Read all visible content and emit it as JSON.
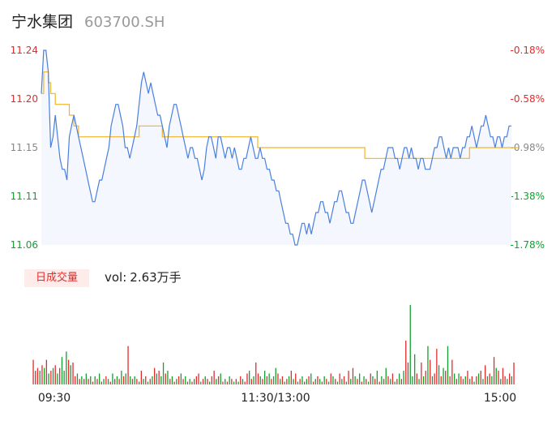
{
  "header": {
    "name": "宁水集团",
    "code": "603700.SH"
  },
  "colors": {
    "up": "#e02c2c",
    "down": "#13a031",
    "price_line": "#4a7fe0",
    "avg_line": "#f2b428",
    "area": "#f4f7fd",
    "neutral": "#888888"
  },
  "volume": {
    "badge": "日成交量",
    "label": "vol:",
    "value": "2.63万手"
  },
  "chart_data": {
    "type": "line",
    "x_ticks": [
      "09:30",
      "11:30/13:00",
      "15:00"
    ],
    "y_left_ticks": [
      "11.24",
      "11.20",
      "11.15",
      "11.11",
      "11.06"
    ],
    "y_right_ticks": [
      "-0.18%",
      "-0.58%",
      "-0.98%",
      "-1.38%",
      "-1.78%"
    ],
    "ylim": [
      11.06,
      11.24
    ],
    "price": [
      11.2,
      11.24,
      11.24,
      11.22,
      11.15,
      11.16,
      11.18,
      11.16,
      11.14,
      11.13,
      11.13,
      11.12,
      11.16,
      11.17,
      11.18,
      11.17,
      11.16,
      11.15,
      11.14,
      11.13,
      11.12,
      11.11,
      11.1,
      11.1,
      11.11,
      11.12,
      11.12,
      11.13,
      11.14,
      11.15,
      11.17,
      11.18,
      11.19,
      11.19,
      11.18,
      11.17,
      11.15,
      11.15,
      11.14,
      11.15,
      11.16,
      11.17,
      11.19,
      11.21,
      11.22,
      11.21,
      11.2,
      11.21,
      11.2,
      11.19,
      11.18,
      11.18,
      11.17,
      11.16,
      11.15,
      11.17,
      11.18,
      11.19,
      11.19,
      11.18,
      11.17,
      11.16,
      11.15,
      11.14,
      11.15,
      11.15,
      11.14,
      11.14,
      11.13,
      11.12,
      11.13,
      11.15,
      11.16,
      11.16,
      11.15,
      11.14,
      11.16,
      11.16,
      11.15,
      11.14,
      11.15,
      11.15,
      11.14,
      11.15,
      11.14,
      11.13,
      11.13,
      11.14,
      11.14,
      11.15,
      11.16,
      11.15,
      11.14,
      11.14,
      11.15,
      11.14,
      11.14,
      11.13,
      11.13,
      11.12,
      11.12,
      11.11,
      11.11,
      11.1,
      11.09,
      11.08,
      11.08,
      11.07,
      11.07,
      11.06,
      11.06,
      11.07,
      11.08,
      11.08,
      11.07,
      11.08,
      11.07,
      11.08,
      11.09,
      11.09,
      11.1,
      11.1,
      11.09,
      11.09,
      11.08,
      11.09,
      11.1,
      11.1,
      11.11,
      11.11,
      11.1,
      11.09,
      11.09,
      11.08,
      11.08,
      11.09,
      11.1,
      11.11,
      11.12,
      11.12,
      11.11,
      11.1,
      11.09,
      11.1,
      11.11,
      11.12,
      11.13,
      11.13,
      11.14,
      11.15,
      11.15,
      11.15,
      11.14,
      11.14,
      11.13,
      11.14,
      11.15,
      11.15,
      11.14,
      11.15,
      11.14,
      11.14,
      11.13,
      11.14,
      11.14,
      11.13,
      11.13,
      11.13,
      11.14,
      11.15,
      11.15,
      11.16,
      11.16,
      11.15,
      11.14,
      11.15,
      11.14,
      11.15,
      11.15,
      11.15,
      11.14,
      11.15,
      11.15,
      11.16,
      11.16,
      11.17,
      11.16,
      11.15,
      11.16,
      11.17,
      11.17,
      11.18,
      11.17,
      11.16,
      11.16,
      11.15,
      11.16,
      11.16,
      11.15,
      11.16,
      11.16,
      11.17,
      11.17
    ],
    "average": [
      11.2,
      11.22,
      11.22,
      11.21,
      11.2,
      11.2,
      11.19,
      11.19,
      11.19,
      11.19,
      11.19,
      11.19,
      11.18,
      11.18,
      11.17,
      11.17,
      11.16,
      11.16,
      11.16,
      11.16,
      11.16,
      11.16,
      11.16,
      11.16,
      11.16,
      11.16,
      11.16,
      11.16,
      11.16,
      11.16,
      11.16,
      11.16,
      11.16,
      11.16,
      11.16,
      11.16,
      11.16,
      11.16,
      11.16,
      11.16,
      11.16,
      11.16,
      11.17,
      11.17,
      11.17,
      11.17,
      11.17,
      11.17,
      11.17,
      11.17,
      11.17,
      11.17,
      11.16,
      11.16,
      11.16,
      11.16,
      11.16,
      11.16,
      11.16,
      11.16,
      11.16,
      11.16,
      11.16,
      11.16,
      11.16,
      11.16,
      11.16,
      11.16,
      11.16,
      11.16,
      11.16,
      11.16,
      11.16,
      11.16,
      11.16,
      11.16,
      11.16,
      11.16,
      11.16,
      11.16,
      11.16,
      11.16,
      11.16,
      11.16,
      11.16,
      11.16,
      11.16,
      11.16,
      11.16,
      11.16,
      11.16,
      11.16,
      11.16,
      11.15,
      11.15,
      11.15,
      11.15,
      11.15,
      11.15,
      11.15,
      11.15,
      11.15,
      11.15,
      11.15,
      11.15,
      11.15,
      11.15,
      11.15,
      11.15,
      11.15,
      11.15,
      11.15,
      11.15,
      11.15,
      11.15,
      11.15,
      11.15,
      11.15,
      11.15,
      11.15,
      11.15,
      11.15,
      11.15,
      11.15,
      11.15,
      11.15,
      11.15,
      11.15,
      11.15,
      11.15,
      11.15,
      11.15,
      11.15,
      11.15,
      11.15,
      11.15,
      11.15,
      11.15,
      11.15,
      11.14,
      11.14,
      11.14,
      11.14,
      11.14,
      11.14,
      11.14,
      11.14,
      11.14,
      11.14,
      11.14,
      11.14,
      11.14,
      11.14,
      11.14,
      11.14,
      11.14,
      11.14,
      11.14,
      11.14,
      11.14,
      11.14,
      11.14,
      11.14,
      11.14,
      11.14,
      11.14,
      11.14,
      11.14,
      11.14,
      11.14,
      11.14,
      11.14,
      11.14,
      11.14,
      11.14,
      11.14,
      11.14,
      11.14,
      11.14,
      11.14,
      11.14,
      11.14,
      11.14,
      11.14,
      11.15,
      11.15,
      11.15,
      11.15,
      11.15,
      11.15,
      11.15,
      11.15,
      11.15,
      11.15,
      11.15,
      11.15,
      11.15,
      11.15,
      11.15,
      11.15,
      11.15,
      11.15,
      11.15,
      11.15,
      11.15,
      11.15
    ],
    "volumes": [
      9,
      5,
      6,
      5,
      7,
      6,
      9,
      4,
      5,
      6,
      7,
      4,
      6,
      10,
      5,
      12,
      9,
      7,
      8,
      3,
      4,
      2,
      3,
      2,
      4,
      2,
      3,
      1,
      3,
      2,
      4,
      1,
      2,
      3,
      2,
      1,
      4,
      2,
      3,
      2,
      5,
      3,
      4,
      14,
      3,
      2,
      3,
      2,
      1,
      5,
      2,
      3,
      1,
      2,
      3,
      6,
      4,
      5,
      3,
      8,
      4,
      5,
      2,
      3,
      1,
      2,
      3,
      4,
      2,
      3,
      1,
      2,
      1,
      2,
      3,
      4,
      1,
      2,
      3,
      2,
      1,
      3,
      5,
      2,
      3,
      4,
      1,
      2,
      1,
      3,
      2,
      1,
      2,
      1,
      3,
      2,
      1,
      4,
      5,
      2,
      3,
      8,
      4,
      3,
      2,
      5,
      3,
      4,
      2,
      3,
      6,
      4,
      2,
      3,
      1,
      2,
      3,
      5,
      2,
      4,
      1,
      2,
      3,
      1,
      2,
      3,
      4,
      1,
      2,
      3,
      2,
      1,
      3,
      2,
      1,
      4,
      3,
      2,
      1,
      4,
      2,
      3,
      1,
      5,
      2,
      6,
      3,
      2,
      4,
      1,
      3,
      2,
      1,
      4,
      3,
      2,
      5,
      1,
      3,
      2,
      6,
      3,
      2,
      4,
      1,
      2,
      4,
      2,
      5,
      16,
      8,
      29,
      3,
      11,
      4,
      2,
      8,
      3,
      5,
      14,
      9,
      3,
      4,
      13,
      7,
      3,
      6,
      5,
      14,
      3,
      9,
      4,
      2,
      4,
      3,
      2,
      3,
      5,
      2,
      3,
      1,
      3,
      4,
      5,
      2,
      7,
      3,
      4,
      3,
      10,
      6,
      5,
      2,
      6,
      3,
      2,
      4,
      3,
      8
    ],
    "volume_colors": [
      "up",
      "up",
      "up",
      "down",
      "up",
      "down",
      "up",
      "down",
      "up",
      "down",
      "up",
      "down",
      "up",
      "down",
      "down",
      "down",
      "up",
      "down",
      "up",
      "up",
      "down",
      "up",
      "down",
      "up",
      "down",
      "up",
      "down",
      "up",
      "down",
      "up",
      "down",
      "up",
      "down",
      "up",
      "down",
      "up",
      "down",
      "up",
      "down",
      "up",
      "down",
      "up",
      "down",
      "up",
      "down",
      "up",
      "down",
      "up",
      "down",
      "up",
      "down",
      "up",
      "down",
      "up",
      "down",
      "up",
      "down",
      "up",
      "down",
      "down",
      "up",
      "down",
      "up",
      "down",
      "up",
      "down",
      "up",
      "down",
      "up",
      "down",
      "up",
      "down",
      "up",
      "down",
      "up",
      "up",
      "down",
      "up",
      "down",
      "up",
      "down",
      "up",
      "up",
      "down",
      "up",
      "down",
      "up",
      "down",
      "up",
      "down",
      "up",
      "down",
      "up",
      "down",
      "up",
      "down",
      "up",
      "up",
      "down",
      "up",
      "down",
      "up",
      "up",
      "down",
      "up",
      "down",
      "up",
      "down",
      "up",
      "down",
      "down",
      "up",
      "down",
      "up",
      "down",
      "up",
      "down",
      "up",
      "down",
      "up",
      "down",
      "up",
      "down",
      "up",
      "down",
      "up",
      "down",
      "up",
      "down",
      "up",
      "down",
      "up",
      "down",
      "up",
      "down",
      "up",
      "down",
      "up",
      "down",
      "up",
      "down",
      "up",
      "down",
      "up",
      "down",
      "up",
      "down",
      "up",
      "down",
      "up",
      "down",
      "up",
      "down",
      "up",
      "down",
      "up",
      "down",
      "up",
      "down",
      "up",
      "down",
      "up",
      "down",
      "up",
      "down",
      "up",
      "down",
      "up",
      "down",
      "up",
      "up",
      "down",
      "down",
      "down",
      "up",
      "down",
      "up",
      "down",
      "up",
      "down",
      "up",
      "down",
      "up",
      "up",
      "down",
      "up",
      "down",
      "up",
      "down",
      "up",
      "up",
      "down",
      "up",
      "down",
      "up",
      "up",
      "down",
      "up",
      "down",
      "up",
      "down",
      "up",
      "down",
      "up",
      "down",
      "up",
      "down",
      "up",
      "down",
      "up",
      "down",
      "up",
      "down",
      "up",
      "up",
      "down",
      "up",
      "down",
      "up",
      "down",
      "up",
      "down",
      "up"
    ]
  }
}
